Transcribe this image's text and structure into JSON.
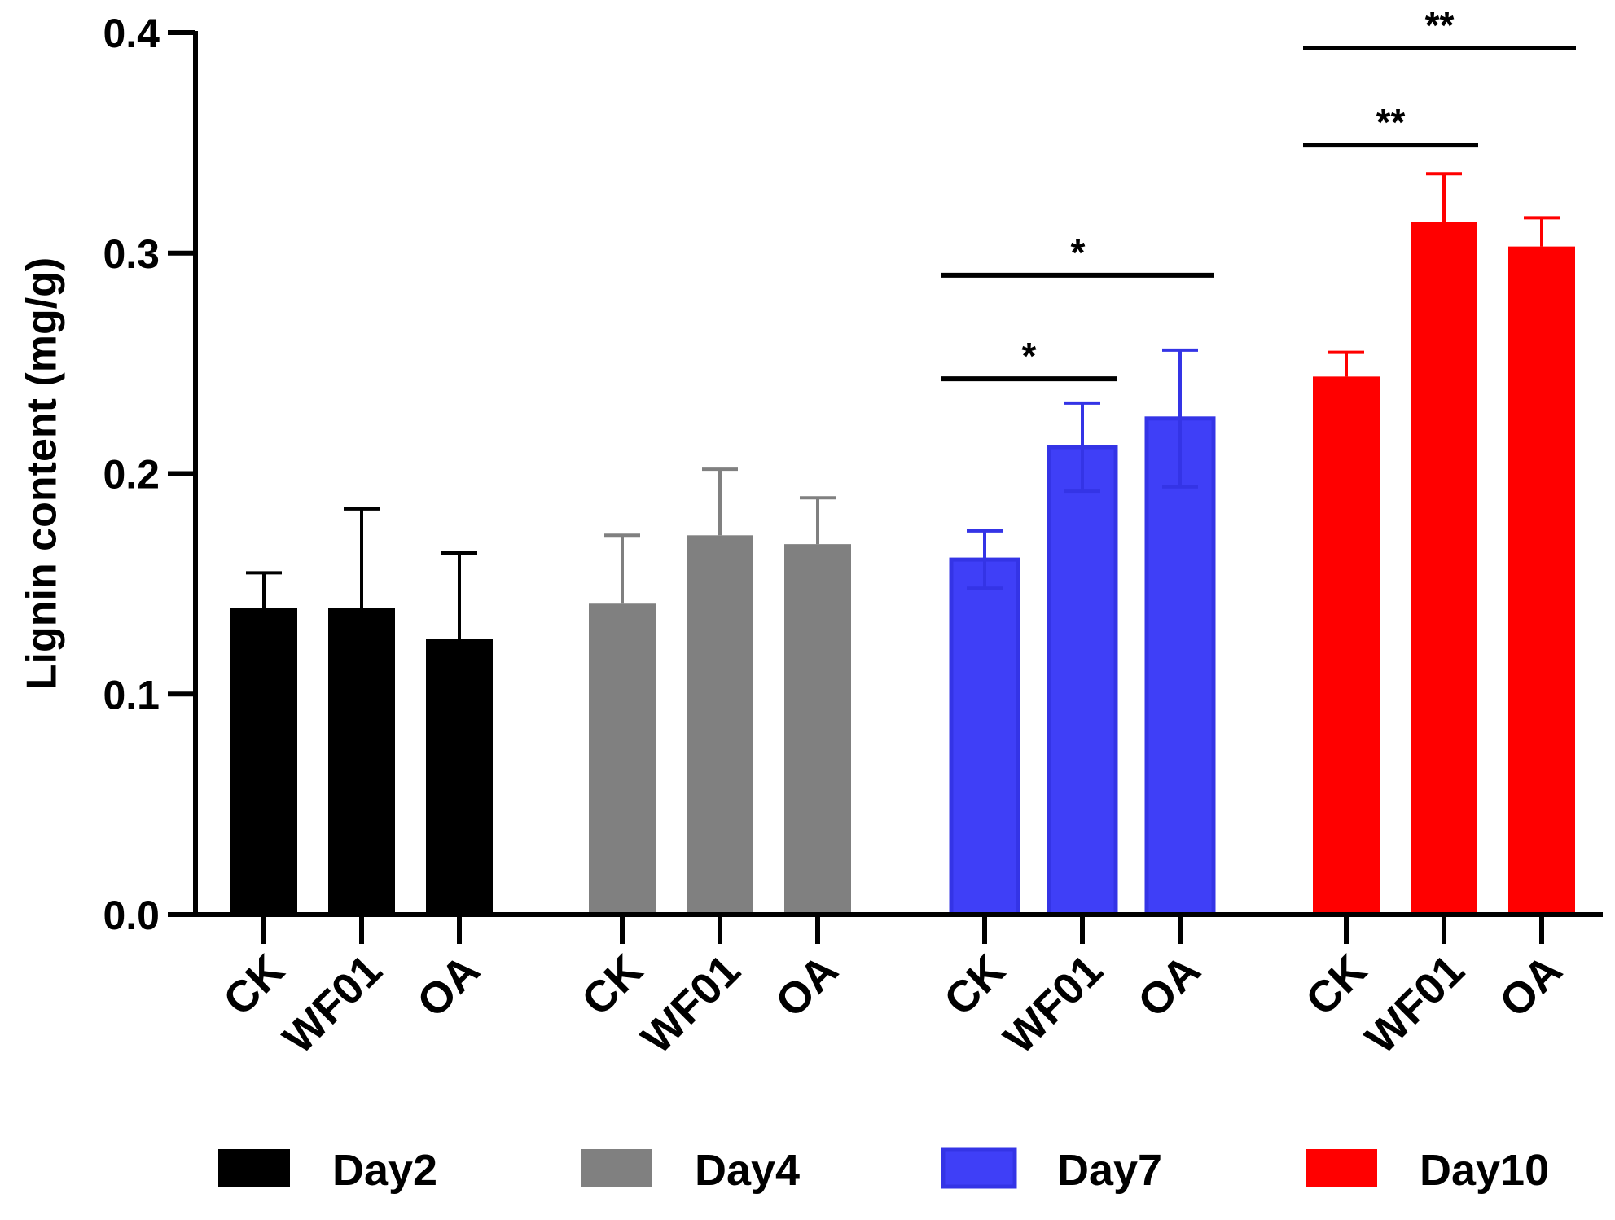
{
  "chart_data": {
    "type": "bar",
    "title": "",
    "xlabel": "",
    "ylabel": "Lignin content (mg/g)",
    "ylim": [
      0,
      0.4
    ],
    "yticks": [
      "0.0",
      "0.1",
      "0.2",
      "0.3",
      "0.4"
    ],
    "categories": [
      "CK",
      "WF01",
      "OA"
    ],
    "series": [
      {
        "name": "Day2",
        "color": "#000000",
        "fill": "#000000",
        "values": [
          0.139,
          0.139,
          0.125
        ],
        "errors": [
          0.016,
          0.045,
          0.039
        ]
      },
      {
        "name": "Day4",
        "color": "#808080",
        "fill": "#808080",
        "values": [
          0.141,
          0.172,
          0.168
        ],
        "errors": [
          0.031,
          0.03,
          0.021
        ]
      },
      {
        "name": "Day7",
        "color": "#3434e6",
        "fill": "#3f3ff7",
        "values": [
          0.161,
          0.212,
          0.225
        ],
        "errors": [
          0.013,
          0.02,
          0.031
        ]
      },
      {
        "name": "Day10",
        "color": "#ff0000",
        "fill": "#ff0000",
        "values": [
          0.244,
          0.314,
          0.303
        ],
        "errors": [
          0.011,
          0.022,
          0.013
        ]
      }
    ],
    "significance": [
      {
        "series": 2,
        "from": 0,
        "to": 1,
        "y": 0.243,
        "label": "*"
      },
      {
        "series": 2,
        "from": 0,
        "to": 2,
        "y": 0.29,
        "label": "*"
      },
      {
        "series": 3,
        "from": 0,
        "to": 1,
        "y": 0.349,
        "label": "**"
      },
      {
        "series": 3,
        "from": 0,
        "to": 2,
        "y": 0.393,
        "label": "**"
      }
    ],
    "legend_position": "bottom"
  }
}
